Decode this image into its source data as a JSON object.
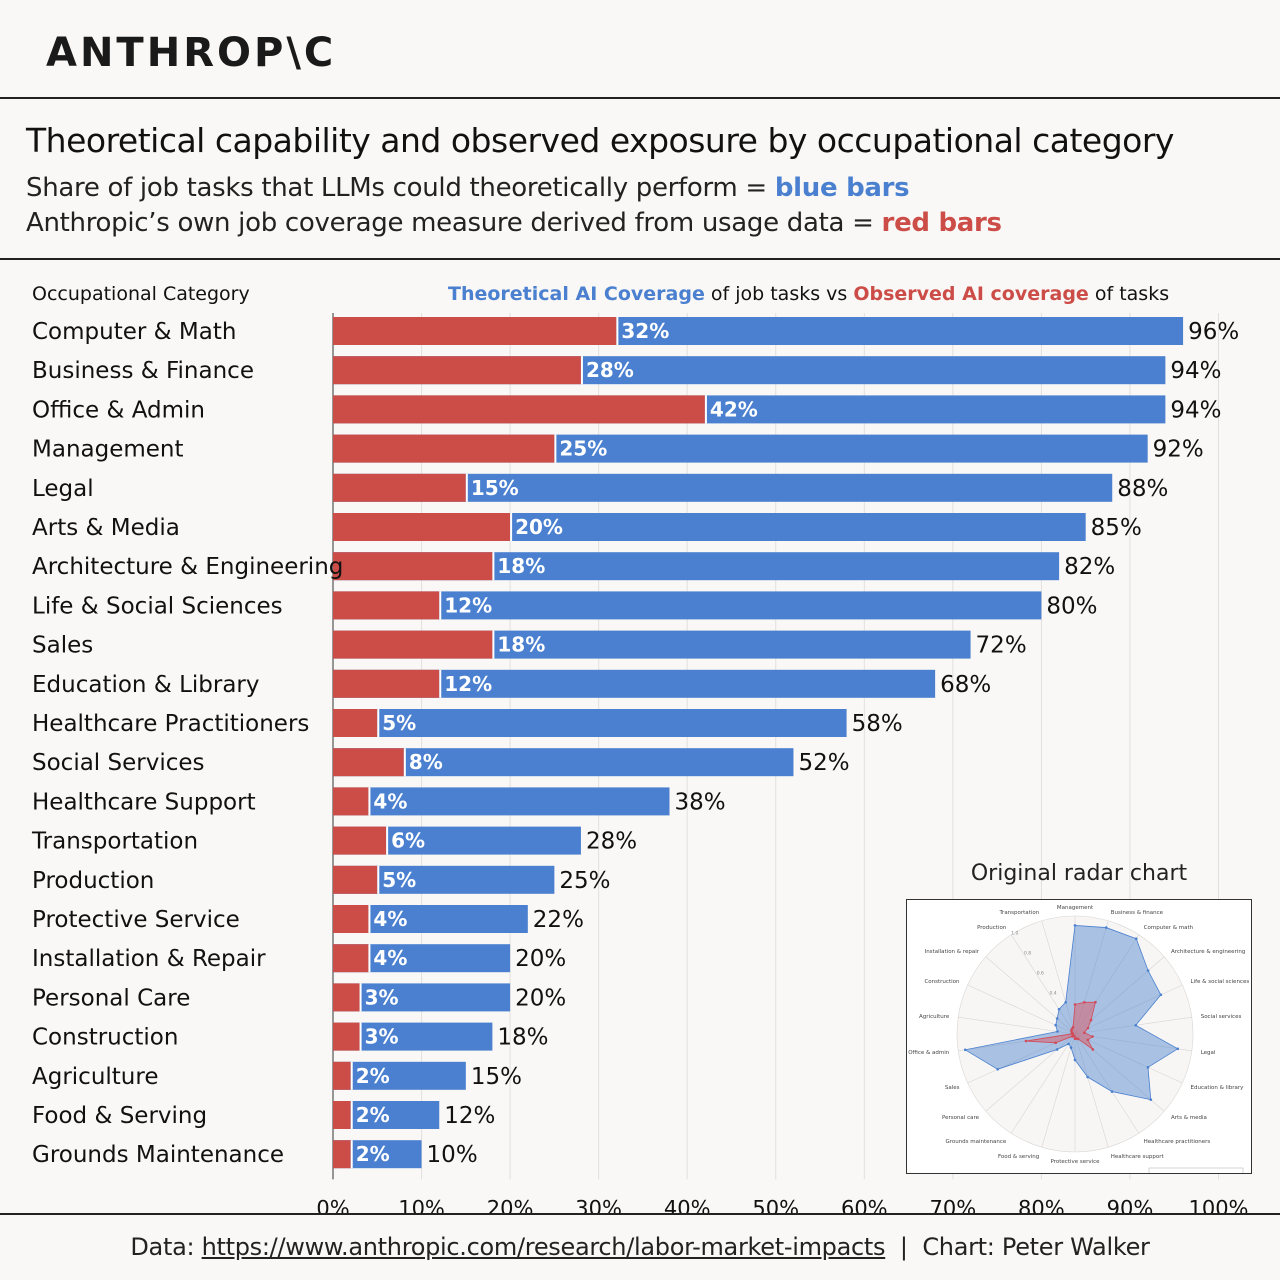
{
  "brand": {
    "logo_text": "ANTHROP\\C"
  },
  "header": {
    "title": "Theoretical capability and observed exposure by occupational category",
    "line1_prefix": "Share of job tasks that LLMs could theoretically perform = ",
    "line1_highlight": "blue bars",
    "line2_prefix": "Anthropic’s own job coverage measure derived from usage data = ",
    "line2_highlight": "red bars"
  },
  "colors": {
    "blue": "#4a80cf",
    "red": "#cc4c48",
    "grid": "#e2e0de"
  },
  "chart_data": {
    "type": "bar",
    "orientation": "horizontal",
    "category_header": "Occupational Category",
    "chart_heading": {
      "part1": "Theoretical AI Coverage",
      "part2": " of job tasks vs ",
      "part3": "Observed AI coverage",
      "part4": " of tasks"
    },
    "categories": [
      "Computer & Math",
      "Business & Finance",
      "Office & Admin",
      "Management",
      "Legal",
      "Arts & Media",
      "Architecture & Engineering",
      "Life & Social Sciences",
      "Sales",
      "Education & Library",
      "Healthcare Practitioners",
      "Social Services",
      "Healthcare Support",
      "Transportation",
      "Production",
      "Protective Service",
      "Installation & Repair",
      "Personal Care",
      "Construction",
      "Agriculture",
      "Food & Serving",
      "Grounds Maintenance"
    ],
    "series": [
      {
        "name": "Theoretical AI Coverage",
        "color": "#4a80cf",
        "values": [
          96,
          94,
          94,
          92,
          88,
          85,
          82,
          80,
          72,
          68,
          58,
          52,
          38,
          28,
          25,
          22,
          20,
          20,
          18,
          15,
          12,
          10
        ]
      },
      {
        "name": "Observed AI coverage",
        "color": "#cc4c48",
        "values": [
          32,
          28,
          42,
          25,
          15,
          20,
          18,
          12,
          18,
          12,
          5,
          8,
          4,
          6,
          5,
          4,
          4,
          3,
          3,
          2,
          2,
          2
        ]
      }
    ],
    "xlim": [
      0,
      100
    ],
    "xticks": [
      "0%",
      "10%",
      "20%",
      "30%",
      "40%",
      "50%",
      "60%",
      "70%",
      "80%",
      "90%",
      "100%"
    ],
    "grid": true,
    "inset": {
      "title": "Original radar chart",
      "type": "radar",
      "axes": [
        "Management",
        "Business & finance",
        "Computer & math",
        "Architecture & engineering",
        "Life & social sciences",
        "Social services",
        "Legal",
        "Education & library",
        "Arts & media",
        "Healthcare practitioners",
        "Healthcare support",
        "Protective service",
        "Food & serving",
        "Grounds maintenance",
        "Personal care",
        "Sales",
        "Office & admin",
        "Agriculture",
        "Construction",
        "Installation & repair",
        "Production",
        "Transportation"
      ],
      "ring_labels": [
        "0.4",
        "0.6",
        "0.8",
        "1.0"
      ],
      "theoretical": [
        92,
        94,
        96,
        82,
        80,
        52,
        88,
        68,
        85,
        58,
        38,
        22,
        12,
        10,
        20,
        72,
        94,
        15,
        18,
        20,
        25,
        28
      ],
      "observed": [
        25,
        28,
        32,
        18,
        12,
        8,
        15,
        12,
        20,
        5,
        4,
        4,
        2,
        2,
        3,
        18,
        42,
        2,
        3,
        4,
        5,
        6
      ]
    }
  },
  "footer": {
    "prefix": "Data: ",
    "link": "https://www.anthropic.com/research/labor-market-impacts",
    "sep": "  |  ",
    "credit": "Chart: Peter Walker"
  }
}
